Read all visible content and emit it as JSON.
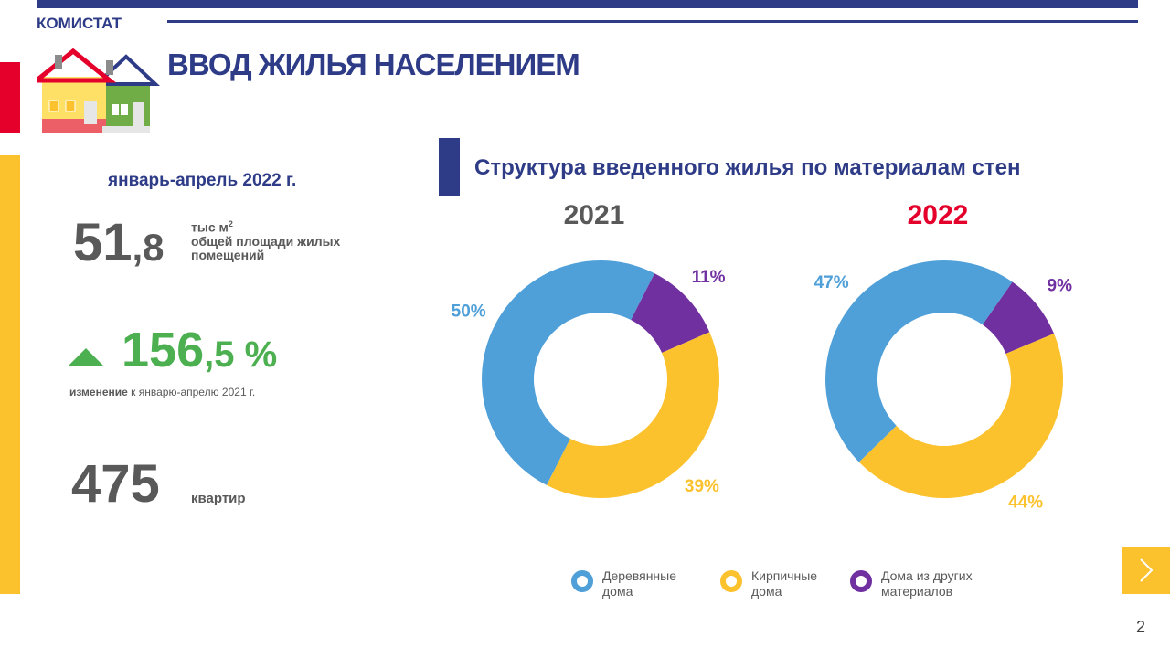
{
  "brand": "КОМИСТАТ",
  "title": "ВВОД ЖИЛЬЯ НАСЕЛЕНИЕМ",
  "period": "январь-апрель 2022 г.",
  "area": {
    "int": "51",
    "frac": ",8",
    "unit": "тыс м",
    "unit_sup": "2",
    "desc": "общей площади жилых помещений"
  },
  "change": {
    "int": "156",
    "frac": ",5 %",
    "label_bold": "изменение",
    "label": "к январю-апрелю  2021 г."
  },
  "flats": {
    "value": "475",
    "unit": "квартир"
  },
  "section_title": "Структура введенного жилья по материалам стен",
  "page_number": "2",
  "legend": {
    "labels": [
      "Деревянные дома",
      "Кирпичные дома",
      "Дома из других материалов"
    ],
    "colors": [
      "#4f9fd8",
      "#fcc22d",
      "#7030a0"
    ]
  },
  "chart_data": [
    {
      "type": "donut",
      "title": "2021",
      "title_color": "#595959",
      "values": [
        50,
        39,
        11
      ],
      "value_labels": [
        "50%",
        "39%",
        "11%"
      ]
    },
    {
      "type": "donut",
      "title": "2022",
      "title_color": "#e4002b",
      "values": [
        47,
        44,
        9
      ],
      "value_labels": [
        "47%",
        "44%",
        "9%"
      ]
    }
  ]
}
